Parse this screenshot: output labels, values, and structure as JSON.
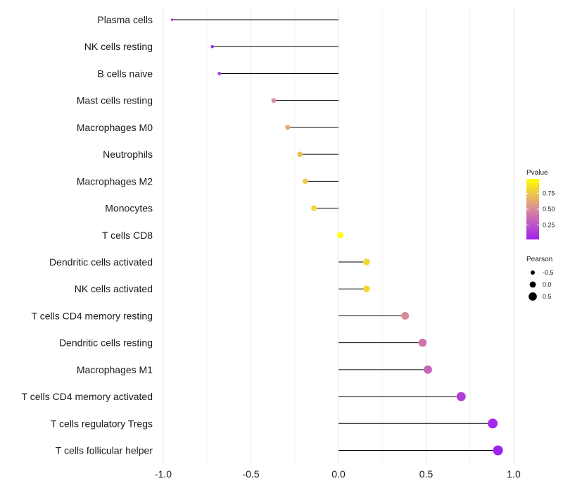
{
  "chart_data": {
    "type": "lollipop",
    "categories": [
      "Plasma cells",
      "NK cells resting",
      "B cells naive",
      "Mast cells resting",
      "Macrophages M0",
      "Neutrophils",
      "Macrophages M2",
      "Monocytes",
      "T cells CD8",
      "Dendritic cells activated",
      "NK cells activated",
      "T cells CD4 memory resting",
      "Dendritic cells resting",
      "Macrophages M1",
      "T cells CD4 memory activated",
      "T cells regulatory  Tregs ",
      "T cells follicular helper"
    ],
    "pearson": [
      -0.95,
      -0.72,
      -0.68,
      -0.37,
      -0.29,
      -0.22,
      -0.19,
      -0.14,
      0.01,
      0.16,
      0.16,
      0.38,
      0.48,
      0.51,
      0.7,
      0.88,
      0.91
    ],
    "pvalue": [
      0.02,
      0.1,
      0.14,
      0.5,
      0.62,
      0.72,
      0.76,
      0.82,
      0.98,
      0.82,
      0.82,
      0.5,
      0.4,
      0.33,
      0.15,
      0.05,
      0.03
    ],
    "x_ticks": [
      "-1.0",
      "-0.5",
      "0.0",
      "0.5",
      "1.0"
    ],
    "x_tick_values": [
      -1.0,
      -0.5,
      0.0,
      0.5,
      1.0
    ],
    "xlim": [
      -1.0,
      1.0
    ],
    "grid": true,
    "legend_position": "right",
    "legend": {
      "color_title": "Pvalue",
      "color_ticks": [
        "0.75",
        "0.50",
        "0.25"
      ],
      "color_tick_values": [
        0.75,
        0.5,
        0.25
      ],
      "color_range": [
        0.02,
        0.98
      ],
      "color_low": "#a020f0",
      "color_mid": "#d98b99",
      "color_high": "#ffff00",
      "size_title": "Pearson",
      "size_labels": [
        "-0.5",
        "0.0",
        "0.5"
      ],
      "size_values": [
        -0.5,
        0.0,
        0.5
      ]
    }
  }
}
